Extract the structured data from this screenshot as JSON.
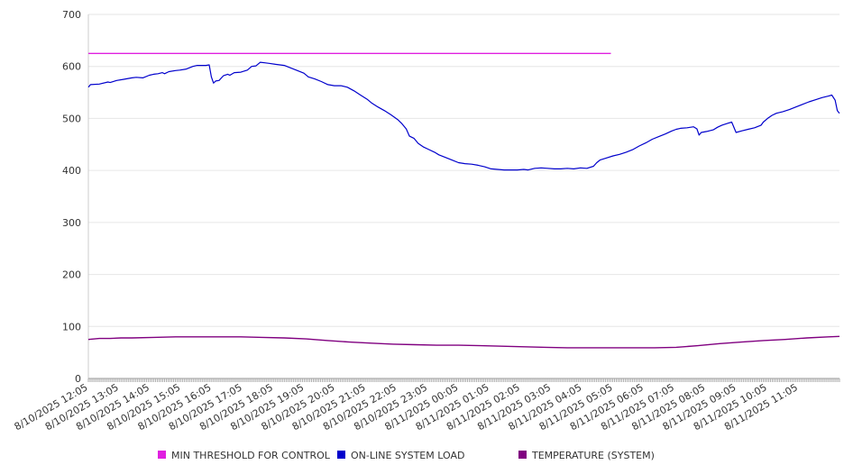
{
  "chart_data": {
    "type": "line",
    "title": "",
    "xlabel": "",
    "ylabel": "",
    "ylim": [
      0,
      700
    ],
    "yticks": [
      0,
      100,
      200,
      300,
      400,
      500,
      600,
      700
    ],
    "grid": true,
    "legend": "bottom",
    "categories": [
      "8/10/2025 12:05",
      "8/10/2025 13:05",
      "8/10/2025 14:05",
      "8/10/2025 15:05",
      "8/10/2025 16:05",
      "8/10/2025 17:05",
      "8/10/2025 18:05",
      "8/10/2025 19:05",
      "8/10/2025 20:05",
      "8/10/2025 21:05",
      "8/10/2025 22:05",
      "8/10/2025 23:05",
      "8/11/2025 00:05",
      "8/11/2025 01:05",
      "8/11/2025 02:05",
      "8/11/2025 03:05",
      "8/11/2025 04:05",
      "8/11/2025 05:05",
      "8/11/2025 06:05",
      "8/11/2025 07:05",
      "8/11/2025 08:05",
      "8/11/2025 09:05",
      "8/11/2025 10:05",
      "8/11/2025 11:05"
    ],
    "x_end": 24.0,
    "series": [
      {
        "name": "MIN THRESHOLD FOR CONTROL",
        "color": "#e020e0",
        "points": [
          [
            0,
            625
          ],
          [
            24.0,
            625
          ]
        ]
      },
      {
        "name": "ON-LINE SYSTEM LOAD",
        "color": "#0000cc",
        "points": [
          [
            0,
            560
          ],
          [
            0.1,
            565
          ],
          [
            0.5,
            566
          ],
          [
            0.9,
            570
          ],
          [
            1.0,
            569
          ],
          [
            1.3,
            573
          ],
          [
            1.6,
            575
          ],
          [
            2.0,
            578
          ],
          [
            2.2,
            579
          ],
          [
            2.5,
            578
          ],
          [
            2.8,
            583
          ],
          [
            3.0,
            585
          ],
          [
            3.2,
            586
          ],
          [
            3.4,
            588
          ],
          [
            3.5,
            586
          ],
          [
            3.7,
            590
          ],
          [
            4.0,
            592
          ],
          [
            4.2,
            593
          ],
          [
            4.5,
            595
          ],
          [
            4.8,
            600
          ],
          [
            5.0,
            602
          ],
          [
            5.2,
            602
          ],
          [
            5.4,
            602
          ],
          [
            5.55,
            603
          ],
          [
            5.65,
            580
          ],
          [
            5.75,
            568
          ],
          [
            5.85,
            572
          ],
          [
            6.0,
            573
          ],
          [
            6.2,
            582
          ],
          [
            6.4,
            585
          ],
          [
            6.5,
            583
          ],
          [
            6.7,
            588
          ],
          [
            7.0,
            589
          ],
          [
            7.3,
            593
          ],
          [
            7.5,
            600
          ],
          [
            7.7,
            601
          ],
          [
            7.9,
            608
          ],
          [
            8.1,
            607
          ],
          [
            8.3,
            606
          ],
          [
            8.6,
            604
          ],
          [
            9.0,
            602
          ],
          [
            9.3,
            597
          ],
          [
            9.6,
            592
          ],
          [
            9.9,
            587
          ],
          [
            10.1,
            580
          ],
          [
            10.4,
            576
          ],
          [
            10.7,
            571
          ],
          [
            11.0,
            565
          ],
          [
            11.3,
            563
          ],
          [
            11.6,
            563
          ],
          [
            11.9,
            560
          ],
          [
            12.2,
            553
          ],
          [
            12.5,
            545
          ],
          [
            12.8,
            537
          ],
          [
            13.0,
            530
          ],
          [
            13.3,
            522
          ],
          [
            13.6,
            515
          ],
          [
            13.9,
            507
          ],
          [
            14.2,
            498
          ],
          [
            14.4,
            490
          ],
          [
            14.6,
            480
          ],
          [
            14.75,
            466
          ],
          [
            14.95,
            462
          ],
          [
            15.15,
            452
          ],
          [
            15.4,
            445
          ],
          [
            15.6,
            441
          ],
          [
            15.9,
            435
          ],
          [
            16.1,
            430
          ],
          [
            16.4,
            425
          ],
          [
            16.7,
            420
          ],
          [
            17.0,
            415
          ],
          [
            17.3,
            413
          ],
          [
            17.6,
            412
          ],
          [
            17.9,
            410
          ],
          [
            18.2,
            407
          ],
          [
            18.5,
            403
          ],
          [
            18.8,
            402
          ],
          [
            19.1,
            401
          ],
          [
            19.4,
            401
          ],
          [
            19.7,
            401
          ],
          [
            20.0,
            402
          ],
          [
            20.2,
            401
          ],
          [
            20.5,
            404
          ],
          [
            20.8,
            405
          ],
          [
            21.1,
            404
          ],
          [
            21.4,
            403
          ],
          [
            21.7,
            403
          ],
          [
            22.0,
            404
          ],
          [
            22.3,
            403
          ],
          [
            22.6,
            405
          ],
          [
            22.9,
            404
          ],
          [
            23.2,
            408
          ],
          [
            23.35,
            415
          ],
          [
            23.5,
            420
          ],
          [
            23.8,
            424
          ],
          [
            24.1,
            428
          ],
          [
            24.4,
            431
          ],
          [
            24.7,
            435
          ],
          [
            25.0,
            440
          ],
          [
            25.3,
            447
          ],
          [
            25.6,
            453
          ],
          [
            25.9,
            460
          ],
          [
            26.2,
            465
          ],
          [
            26.5,
            470
          ],
          [
            26.8,
            476
          ],
          [
            27.0,
            479
          ],
          [
            27.2,
            481
          ],
          [
            27.5,
            482
          ],
          [
            27.8,
            484
          ],
          [
            27.95,
            480
          ],
          [
            28.05,
            468
          ],
          [
            28.15,
            473
          ],
          [
            28.4,
            475
          ],
          [
            28.7,
            478
          ],
          [
            28.9,
            483
          ],
          [
            29.1,
            487
          ],
          [
            29.4,
            491
          ],
          [
            29.55,
            493
          ],
          [
            29.75,
            473
          ],
          [
            30.0,
            476
          ],
          [
            30.3,
            479
          ],
          [
            30.6,
            482
          ],
          [
            30.9,
            487
          ],
          [
            31.0,
            493
          ],
          [
            31.2,
            500
          ],
          [
            31.4,
            506
          ],
          [
            31.6,
            510
          ],
          [
            31.9,
            513
          ],
          [
            32.2,
            517
          ],
          [
            32.5,
            522
          ],
          [
            32.8,
            527
          ],
          [
            33.1,
            532
          ],
          [
            33.4,
            536
          ],
          [
            33.7,
            540
          ],
          [
            34.0,
            543
          ],
          [
            34.15,
            545
          ],
          [
            34.3,
            535
          ],
          [
            34.4,
            515
          ],
          [
            34.5,
            510
          ]
        ]
      },
      {
        "name": "TEMPERATURE (SYSTEM)",
        "color": "#800080",
        "points": [
          [
            0,
            75
          ],
          [
            0.5,
            77
          ],
          [
            1.0,
            77
          ],
          [
            1.5,
            78
          ],
          [
            2.0,
            78
          ],
          [
            3.0,
            79
          ],
          [
            4.0,
            80
          ],
          [
            5.0,
            80
          ],
          [
            6.0,
            80
          ],
          [
            7.0,
            80
          ],
          [
            8.0,
            79
          ],
          [
            9.0,
            78
          ],
          [
            10.0,
            76
          ],
          [
            11.0,
            73
          ],
          [
            12.0,
            70
          ],
          [
            13.0,
            68
          ],
          [
            14.0,
            66
          ],
          [
            15.0,
            65
          ],
          [
            16.0,
            64
          ],
          [
            17.0,
            64
          ],
          [
            18.0,
            63
          ],
          [
            19.0,
            62
          ],
          [
            20.0,
            61
          ],
          [
            21.0,
            60
          ],
          [
            22.0,
            59
          ],
          [
            23.0,
            59
          ],
          [
            24.0,
            59
          ],
          [
            25.0,
            59
          ],
          [
            26.0,
            59
          ],
          [
            27.0,
            60
          ],
          [
            28.0,
            63
          ],
          [
            29.0,
            67
          ],
          [
            30.0,
            70
          ],
          [
            31.0,
            73
          ],
          [
            32.0,
            75
          ],
          [
            33.0,
            78
          ],
          [
            34.0,
            80
          ],
          [
            34.5,
            81
          ]
        ]
      }
    ]
  }
}
